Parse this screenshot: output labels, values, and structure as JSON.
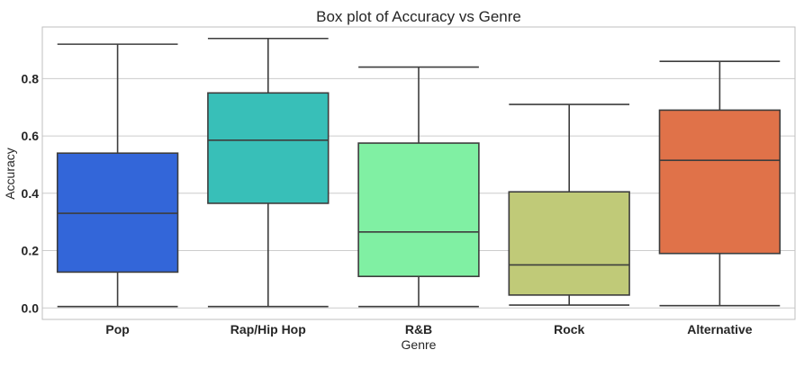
{
  "chart_data": {
    "type": "box",
    "title": "Box plot of Accuracy vs Genre",
    "xlabel": "Genre",
    "ylabel": "Accuracy",
    "ylim": [
      -0.04,
      0.98
    ],
    "yticks": [
      "0.0",
      "0.2",
      "0.4",
      "0.6",
      "0.8"
    ],
    "ytick_values": [
      0.0,
      0.2,
      0.4,
      0.6,
      0.8
    ],
    "grid": true,
    "categories": [
      "Pop",
      "Rap/Hip Hop",
      "R&B",
      "Rock",
      "Alternative"
    ],
    "boxes": [
      {
        "min": 0.005,
        "q1": 0.125,
        "median": 0.33,
        "q3": 0.54,
        "max": 0.92,
        "color": "#3366d9"
      },
      {
        "min": 0.005,
        "q1": 0.365,
        "median": 0.585,
        "q3": 0.75,
        "max": 0.94,
        "color": "#38bfb8"
      },
      {
        "min": 0.005,
        "q1": 0.11,
        "median": 0.265,
        "q3": 0.575,
        "max": 0.84,
        "color": "#80f0a3"
      },
      {
        "min": 0.01,
        "q1": 0.045,
        "median": 0.15,
        "q3": 0.405,
        "max": 0.71,
        "color": "#c0ca78"
      },
      {
        "min": 0.008,
        "q1": 0.19,
        "median": 0.515,
        "q3": 0.69,
        "max": 0.86,
        "color": "#e07249"
      }
    ]
  }
}
